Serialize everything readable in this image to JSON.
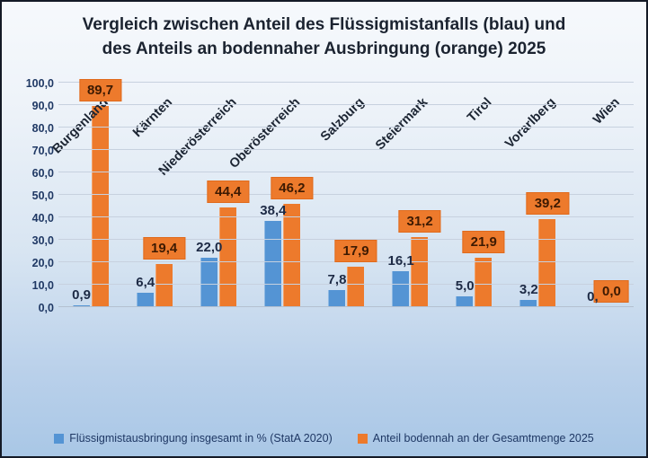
{
  "title": {
    "line1": "Vergleich zwischen Anteil des Flüssigmistanfalls (blau) und",
    "line2": "des Anteils an bodennaher Ausbringung (orange) 2025"
  },
  "legend": [
    {
      "label": "Flüssigmistausbringung insgesamt in % (StatA 2020)",
      "color": "#5494d4"
    },
    {
      "label": "Anteil bodennah an der Gesamtmenge 2025",
      "color": "#ed7a2c"
    }
  ],
  "colors": {
    "blue_series": "#5494d4",
    "orange_series": "#ed7a2c",
    "orange_label_text": "#3d1a02",
    "axis_text": "#1f3864",
    "background_top": "#f6f9fc",
    "background_bottom": "#a9c7e6"
  },
  "chart_data": {
    "type": "bar",
    "title": "Vergleich zwischen Anteil des Flüssigmistanfalls (blau) und des Anteils an bodennaher Ausbringung (orange) 2025",
    "categories": [
      "Burgenland",
      "Kärnten",
      "Niederösterreich",
      "Oberösterreich",
      "Salzburg",
      "Steiermark",
      "Tirol",
      "Vorarlberg",
      "Wien"
    ],
    "series": [
      {
        "name": "Flüssigmistausbringung insgesamt in % (StatA 2020)",
        "color": "#5494d4",
        "values": [
          0.9,
          6.4,
          22.0,
          38.4,
          7.8,
          16.1,
          5.0,
          3.2,
          0.0
        ],
        "labels": [
          "0,9",
          "6,4",
          "22,0",
          "38,4",
          "7,8",
          "16,1",
          "5,0",
          "3,2",
          "0,"
        ]
      },
      {
        "name": "Anteil bodennah an der Gesamtmenge 2025",
        "color": "#ed7a2c",
        "label_style": "boxed",
        "values": [
          89.7,
          19.4,
          44.4,
          46.2,
          17.9,
          31.2,
          21.9,
          39.2,
          0.0
        ],
        "labels": [
          "89,7",
          "19,4",
          "44,4",
          "46,2",
          "17,9",
          "31,2",
          "21,9",
          "39,2",
          "0,0"
        ]
      }
    ],
    "ylim": [
      0,
      100
    ],
    "ytick_step": 10,
    "ytick_labels": [
      "0,0",
      "10,0",
      "20,0",
      "30,0",
      "40,0",
      "50,0",
      "60,0",
      "70,0",
      "80,0",
      "90,0",
      "100,0"
    ],
    "grid": true,
    "legend_position": "bottom",
    "xlabel": "",
    "ylabel": ""
  }
}
